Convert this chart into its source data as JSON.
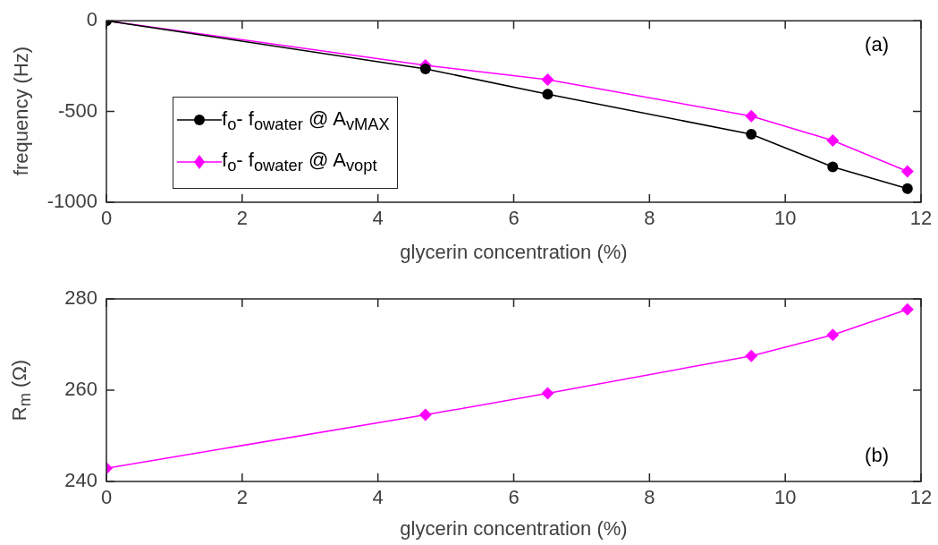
{
  "chart_data": [
    {
      "type": "line",
      "xlabel": "glycerin concentration (%)",
      "ylabel": "frequency  (Hz)",
      "xlim": [
        0,
        12
      ],
      "xticks": [
        0,
        2,
        4,
        6,
        8,
        10,
        12
      ],
      "ylim": [
        -1000,
        0
      ],
      "yticks": [
        -1000,
        -500,
        0
      ],
      "grid": false,
      "legend": "left",
      "annotations": [
        "(a)"
      ],
      "x": [
        0,
        4.7,
        6.5,
        9.5,
        10.7,
        11.8
      ],
      "series": [
        {
          "name": "f$_{o}$-  f$_{owater}$  @ A$_{vMAX}$",
          "color": "#000000",
          "marker": "circle",
          "values": [
            0,
            -265,
            -405,
            -625,
            -805,
            -925
          ]
        },
        {
          "name": "f$_{o}$-  f$_{owater}$ @ A$_{vopt}$",
          "color": "#ff00ff",
          "marker": "diamond",
          "values": [
            0,
            -245,
            -325,
            -525,
            -660,
            -830
          ]
        }
      ]
    },
    {
      "type": "line",
      "xlabel": "glycerin concentration (%)",
      "ylabel": "R$_{m}$ (Ω)",
      "xlim": [
        0,
        12
      ],
      "xticks": [
        0,
        2,
        4,
        6,
        8,
        10,
        12
      ],
      "ylim": [
        240,
        280
      ],
      "yticks": [
        240,
        260,
        280
      ],
      "grid": false,
      "annotations": [
        "(b)"
      ],
      "x": [
        0,
        4.7,
        6.5,
        9.5,
        10.7,
        11.8
      ],
      "series": [
        {
          "color": "#ff00ff",
          "marker": "diamond",
          "values": [
            242.9,
            254.6,
            259.3,
            267.5,
            272.1,
            277.7
          ]
        }
      ]
    }
  ]
}
